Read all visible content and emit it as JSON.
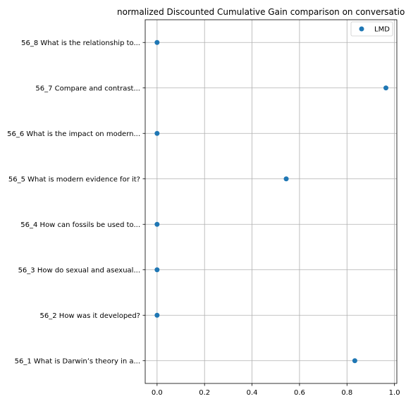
{
  "chart_data": {
    "type": "scatter",
    "title": "normalized Discounted Cumulative Gain comparison on conversatio",
    "xlabel": "",
    "ylabel": "",
    "xlim": [
      -0.05,
      1.01
    ],
    "xticks": [
      0.0,
      0.2,
      0.4,
      0.6,
      0.8,
      1.0
    ],
    "xtick_labels": [
      "0.0",
      "0.2",
      "0.4",
      "0.6",
      "0.8",
      "1.0"
    ],
    "grid": true,
    "legend_position": "top-right",
    "categories": [
      "56_1 What is Darwin’s theory in a...",
      "56_2 How was it developed?",
      "56_3 How do sexual and asexual...",
      "56_4 How can fossils be used to...",
      "56_5 What is modern evidence for it?",
      "56_6 What is the impact on modern...",
      "56_7 Compare and contrast...",
      "56_8 What is the relationship to..."
    ],
    "series": [
      {
        "name": "LMD",
        "color": "#1f77b4",
        "values": [
          0.833,
          0.0,
          0.0,
          0.0,
          0.544,
          0.0,
          0.964,
          0.0
        ]
      }
    ]
  }
}
